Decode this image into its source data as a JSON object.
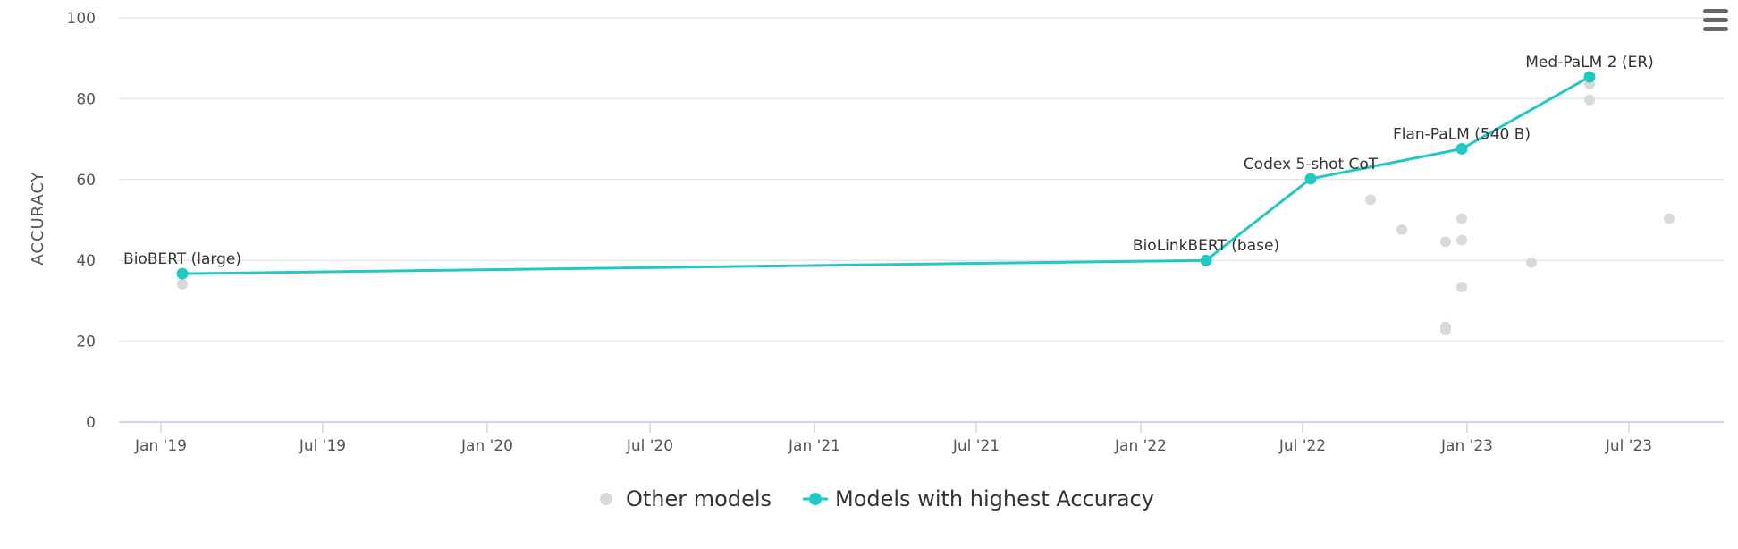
{
  "chart_data": {
    "type": "scatter",
    "xlabel": "",
    "ylabel": "ACCURACY",
    "ylim": [
      0,
      100
    ],
    "yticks": [
      0,
      20,
      40,
      60,
      80,
      100
    ],
    "xlim": [
      "2018-11-15",
      "2023-10-15"
    ],
    "xticks": [
      {
        "date": "2019-01-01",
        "label": "Jan '19"
      },
      {
        "date": "2019-07-01",
        "label": "Jul '19"
      },
      {
        "date": "2020-01-01",
        "label": "Jan '20"
      },
      {
        "date": "2020-07-01",
        "label": "Jul '20"
      },
      {
        "date": "2021-01-01",
        "label": "Jan '21"
      },
      {
        "date": "2021-07-01",
        "label": "Jul '21"
      },
      {
        "date": "2022-01-01",
        "label": "Jan '22"
      },
      {
        "date": "2022-07-01",
        "label": "Jul '22"
      },
      {
        "date": "2023-01-01",
        "label": "Jan '23"
      },
      {
        "date": "2023-07-01",
        "label": "Jul '23"
      }
    ],
    "grid": true,
    "legend_position": "bottom-center",
    "series": [
      {
        "name": "Other models",
        "color": "#d9d9d9",
        "marker": "circle",
        "line": false,
        "points": [
          {
            "x": "2019-01-25",
            "y": 34.1
          },
          {
            "x": "2022-09-15",
            "y": 55.0
          },
          {
            "x": "2022-10-20",
            "y": 47.6
          },
          {
            "x": "2022-12-08",
            "y": 44.6
          },
          {
            "x": "2022-12-08",
            "y": 23.5
          },
          {
            "x": "2022-12-08",
            "y": 22.8
          },
          {
            "x": "2022-12-26",
            "y": 50.3
          },
          {
            "x": "2022-12-26",
            "y": 45.0
          },
          {
            "x": "2022-12-26",
            "y": 33.4
          },
          {
            "x": "2023-03-14",
            "y": 39.5
          },
          {
            "x": "2023-05-18",
            "y": 83.6
          },
          {
            "x": "2023-05-18",
            "y": 79.7
          },
          {
            "x": "2023-08-15",
            "y": 50.3
          }
        ]
      },
      {
        "name": "Models with highest Accuracy",
        "color": "#22c8c2",
        "marker": "circle",
        "line": true,
        "points": [
          {
            "x": "2019-01-25",
            "y": 36.7,
            "label": "BioBERT (large)"
          },
          {
            "x": "2022-03-15",
            "y": 40.0,
            "label": "BioLinkBERT (base)"
          },
          {
            "x": "2022-07-10",
            "y": 60.2,
            "label": "Codex 5-shot CoT"
          },
          {
            "x": "2022-12-26",
            "y": 67.6,
            "label": "Flan-PaLM (540 B)"
          },
          {
            "x": "2023-05-18",
            "y": 85.4,
            "label": "Med-PaLM 2 (ER)"
          }
        ]
      }
    ]
  },
  "toolbar": {
    "menu_icon": "hamburger-menu-icon"
  }
}
